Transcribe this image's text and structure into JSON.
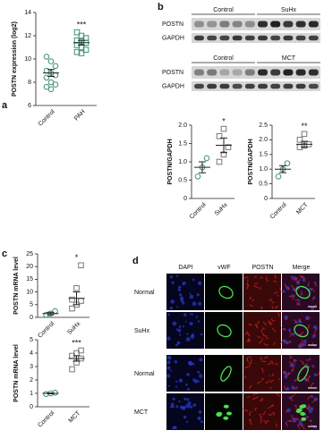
{
  "panels": [
    "a",
    "b",
    "c",
    "d"
  ],
  "chart_data": [
    {
      "type": "dot",
      "ylabel": "POSTN expression (log2)",
      "annotation": "***",
      "categories": [
        "Control",
        "PAH"
      ],
      "colors": [
        "#3f8f78",
        "#3f8f78"
      ],
      "markers": [
        "circle",
        "square"
      ],
      "points": [
        [
          10.2,
          9.8,
          9.4,
          9.0,
          8.8,
          8.6,
          8.4,
          8.0,
          7.8,
          7.6,
          7.4
        ],
        [
          12.3,
          12.0,
          11.8,
          11.6,
          11.5,
          11.4,
          11.2,
          11.0,
          10.8,
          10.6,
          10.5
        ]
      ],
      "means": [
        8.8,
        11.4
      ],
      "errors": [
        0.3,
        0.2
      ],
      "ylim": [
        6,
        14
      ],
      "yticks": [
        6,
        8,
        10,
        12,
        14
      ]
    },
    {
      "type": "dot",
      "ylabel": "POSTN/GAPDH",
      "annotation": "*",
      "categories": [
        "Control",
        "SuHx"
      ],
      "colors": [
        "#3f8f78",
        "#777777"
      ],
      "markers": [
        "circle",
        "square"
      ],
      "points": [
        [
          0.6,
          0.85,
          1.1
        ],
        [
          1.0,
          1.2,
          1.4,
          1.7,
          1.9
        ]
      ],
      "means": [
        0.85,
        1.45
      ],
      "errors": [
        0.15,
        0.2
      ],
      "ylim": [
        0,
        2
      ],
      "yticks": [
        0,
        0.5,
        {
          "value": 1,
          "label": "1.0"
        },
        1.5,
        {
          "value": 2,
          "label": "2.0"
        }
      ]
    },
    {
      "type": "dot",
      "ylabel": "POSTN/GAPDH",
      "annotation": "**",
      "categories": [
        "Control",
        "MCT"
      ],
      "colors": [
        "#3f8f78",
        "#777777"
      ],
      "markers": [
        "circle",
        "square"
      ],
      "points": [
        [
          0.75,
          1.0,
          1.2
        ],
        [
          1.75,
          1.8,
          1.85,
          2.0,
          2.2
        ]
      ],
      "means": [
        1.0,
        1.85
      ],
      "errors": [
        0.12,
        0.1
      ],
      "ylim": [
        0,
        2.5
      ],
      "yticks": [
        0,
        0.5,
        {
          "value": 1,
          "label": "1.0"
        },
        1.5,
        {
          "value": 2,
          "label": "2.0"
        },
        2.5
      ]
    },
    {
      "type": "dot",
      "ylabel": "POSTN mRNA level",
      "annotation": "*",
      "categories": [
        "Control",
        "SuHx"
      ],
      "colors": [
        "#3f8f78",
        "#777777"
      ],
      "markers": [
        "circle",
        "square"
      ],
      "points": [
        [
          1,
          1.5,
          2.5
        ],
        [
          3.5,
          5,
          6.5,
          7,
          11.5,
          20.5
        ]
      ],
      "means": [
        1.5,
        7.5
      ],
      "errors": [
        0.5,
        2.5
      ],
      "ylim": [
        0,
        25
      ],
      "yticks": [
        0,
        5,
        10,
        15,
        20,
        25
      ]
    },
    {
      "type": "dot",
      "ylabel": "POSTN mRNA level",
      "annotation": "***",
      "categories": [
        "Control",
        "MCT"
      ],
      "colors": [
        "#3f8f78",
        "#777777"
      ],
      "markers": [
        "circle",
        "square"
      ],
      "points": [
        [
          0.95,
          1.0,
          1.05
        ],
        [
          2.8,
          3.3,
          3.6,
          3.8,
          4.0,
          4.2
        ]
      ],
      "means": [
        1.0,
        3.6
      ],
      "errors": [
        0.03,
        0.2
      ],
      "ylim": [
        0,
        5
      ],
      "yticks": [
        0,
        1,
        2,
        3,
        4,
        5
      ]
    }
  ],
  "blots": [
    {
      "groups": [
        "Control",
        "SuHx"
      ],
      "bands": [
        "POSTN",
        "GAPDH"
      ]
    },
    {
      "groups": [
        "Control",
        "MCT"
      ],
      "bands": [
        "POSTN",
        "GAPDH"
      ]
    }
  ],
  "micrographs": {
    "columns": [
      "DAPI",
      "vWF",
      "POSTN",
      "Merge"
    ],
    "rows": [
      "Normal",
      "SuHx",
      "Normal",
      "MCT"
    ]
  }
}
